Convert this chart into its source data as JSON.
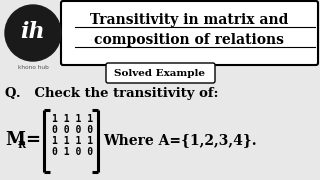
{
  "bg_color": "#e8e8e8",
  "title_box_color": "#ffffff",
  "title_line1": "Transitivity in matrix and",
  "title_line2": "composition of relations",
  "subtitle_text": "Solved Example",
  "question_text": "Q.   Check the transitivity of:",
  "matrix_rows": [
    "1 1 1 1",
    "0 0 0 0",
    "1 1 1 1",
    "0 1 0 0"
  ],
  "where_text": "Where A={1,2,3,4}.",
  "logo_bg": "#1a1a1a",
  "logo_text_color": "#ffffff",
  "khono_text": "khono hub",
  "text_color": "#000000"
}
